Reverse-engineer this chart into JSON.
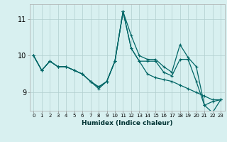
{
  "xlabel": "Humidex (Indice chaleur)",
  "bg_color": "#d8f0f0",
  "grid_color": "#b0cece",
  "line_color": "#006666",
  "xlim": [
    -0.5,
    23.5
  ],
  "ylim": [
    8.5,
    11.4
  ],
  "yticks": [
    9,
    10,
    11
  ],
  "xticks": [
    0,
    1,
    2,
    3,
    4,
    5,
    6,
    7,
    8,
    9,
    10,
    11,
    12,
    13,
    14,
    15,
    16,
    17,
    18,
    19,
    20,
    21,
    22,
    23
  ],
  "series": [
    [
      10.0,
      9.6,
      9.85,
      9.7,
      9.7,
      9.6,
      9.5,
      9.3,
      9.1,
      9.3,
      9.85,
      11.2,
      10.55,
      10.0,
      9.9,
      9.9,
      9.7,
      9.55,
      10.3,
      9.95,
      9.7,
      8.65,
      8.75,
      8.8
    ],
    [
      10.0,
      9.6,
      9.85,
      9.7,
      9.7,
      9.6,
      9.5,
      9.3,
      9.15,
      9.3,
      9.85,
      11.2,
      10.2,
      9.85,
      9.85,
      9.85,
      9.55,
      9.45,
      9.9,
      9.9,
      9.3,
      8.65,
      8.45,
      8.8
    ],
    [
      10.0,
      9.6,
      9.85,
      9.7,
      9.7,
      9.6,
      9.5,
      9.3,
      9.15,
      9.3,
      9.85,
      11.2,
      10.2,
      9.85,
      9.5,
      9.4,
      9.35,
      9.3,
      9.2,
      9.1,
      9.0,
      8.9,
      8.8,
      8.8
    ]
  ]
}
